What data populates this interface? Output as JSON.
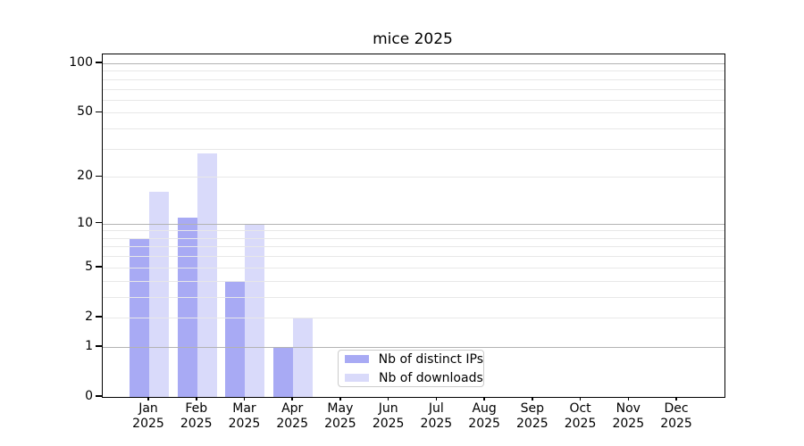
{
  "colors": {
    "background": "#ffffff",
    "axis": "#000000",
    "major_grid": "#b3b3b3",
    "minor_grid": "#e8e8e8",
    "legend_border": "#cbcbcb",
    "bar_distinct_ips": "#a8aaf4",
    "bar_downloads": "#d9dafa"
  },
  "chart_data": {
    "type": "bar",
    "title": "mice 2025",
    "categories": [
      "Jan",
      "Feb",
      "Mar",
      "Apr",
      "May",
      "Jun",
      "Jul",
      "Aug",
      "Sep",
      "Oct",
      "Nov",
      "Dec"
    ],
    "year_label": "2025",
    "series": [
      {
        "name": "Nb of distinct IPs",
        "color": "#a8aaf4",
        "values": [
          8,
          11,
          4,
          1,
          0,
          0,
          0,
          0,
          0,
          0,
          0,
          0
        ]
      },
      {
        "name": "Nb of downloads",
        "color": "#d9dafa",
        "values": [
          16,
          28,
          10,
          2,
          0,
          0,
          0,
          0,
          0,
          0,
          0,
          0
        ]
      }
    ],
    "yscale": "log1p",
    "ylim": [
      0,
      112
    ],
    "yticks": [
      100,
      50,
      20,
      10,
      5,
      2,
      1,
      0
    ],
    "major_gridlines": [
      1,
      10,
      100
    ],
    "minor_gridlines": [
      2,
      3,
      4,
      5,
      6,
      7,
      8,
      9,
      20,
      30,
      40,
      50,
      60,
      70,
      80,
      90
    ],
    "grid_over_bars": true,
    "legend_position": "inside-bottom-center"
  }
}
